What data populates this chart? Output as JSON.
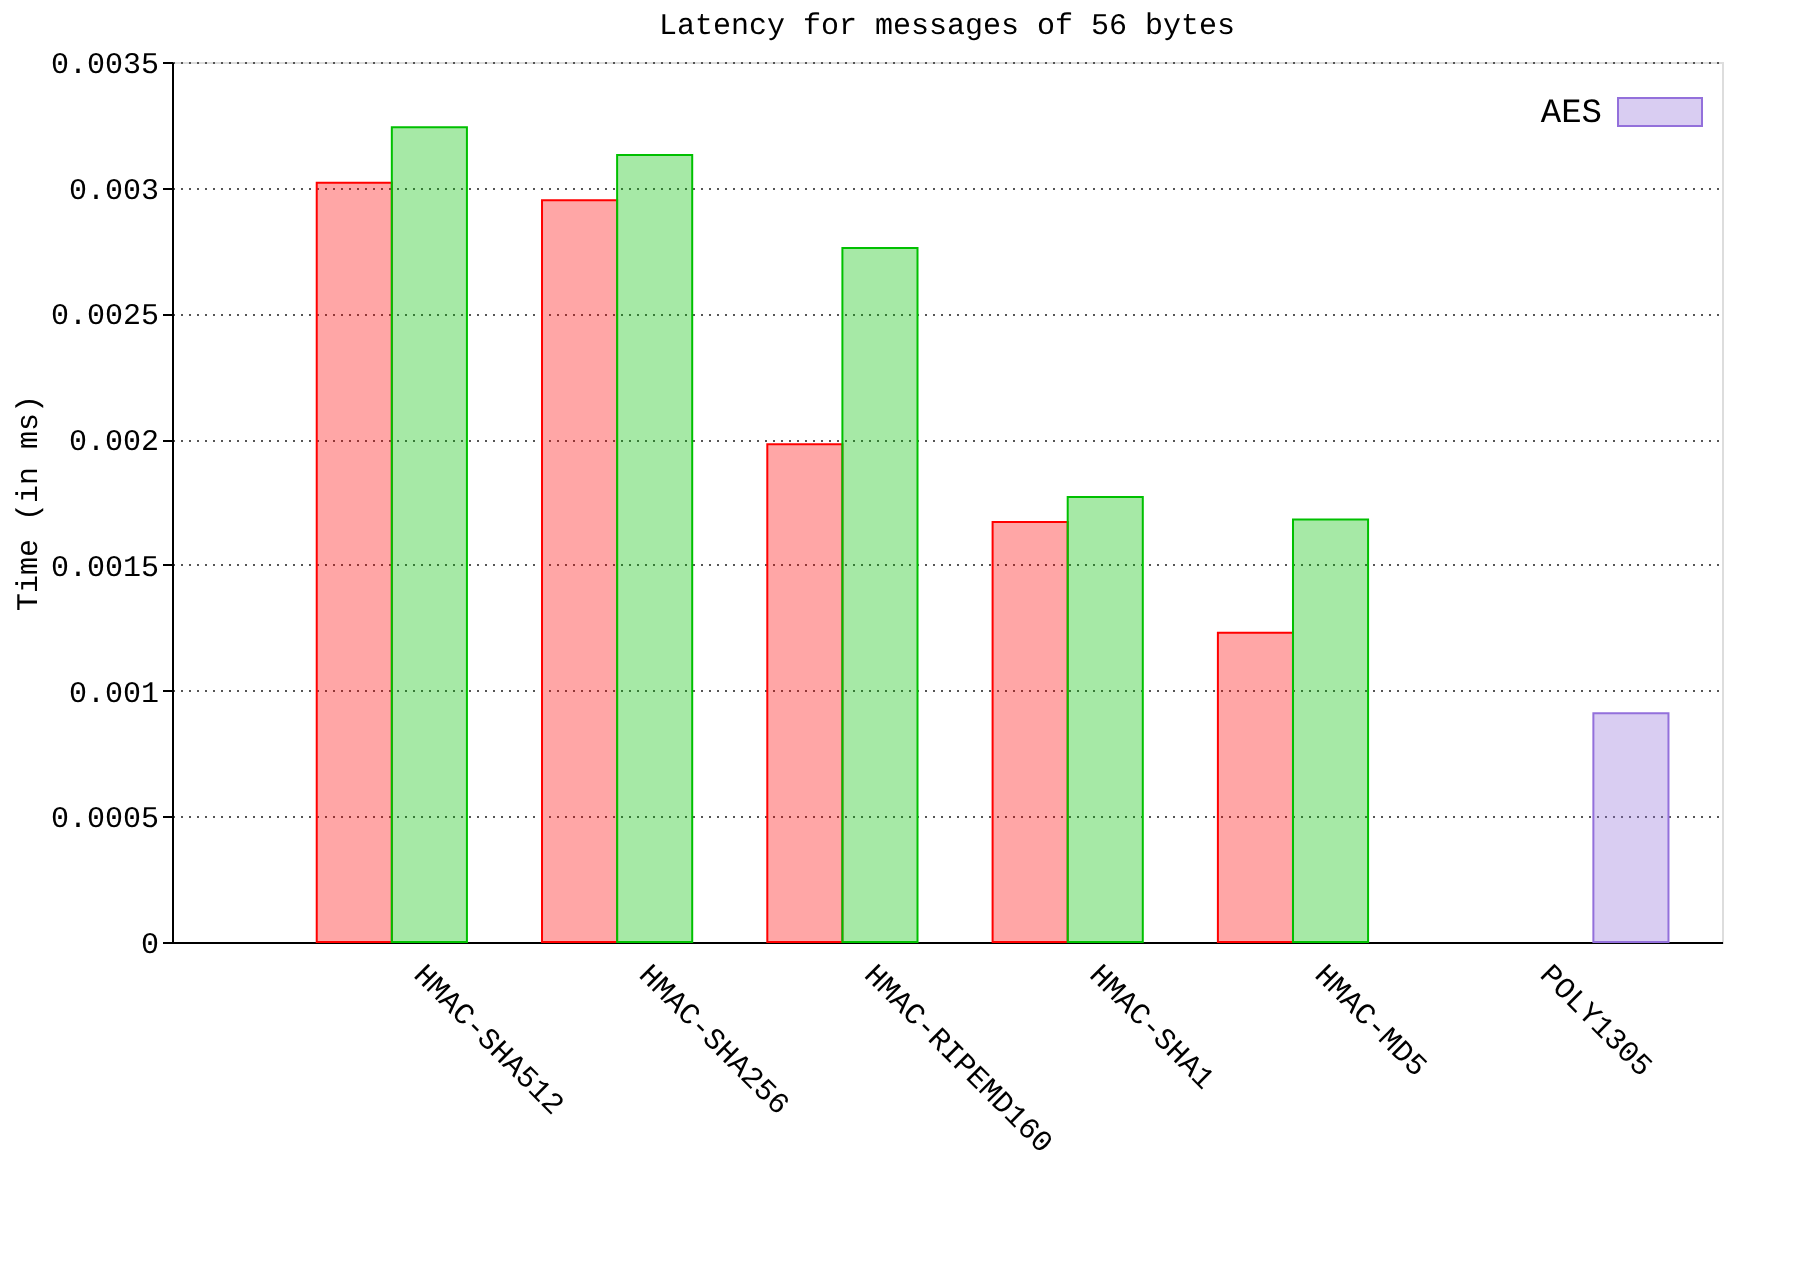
{
  "chart_data": {
    "type": "bar",
    "title": "Latency for messages of 56 bytes",
    "ylabel": "Time (in ms)",
    "categories": [
      "HMAC-SHA512",
      "HMAC-SHA256",
      "HMAC-RIPEMD160",
      "HMAC-SHA1",
      "HMAC-MD5",
      "POLY1305"
    ],
    "series": [
      {
        "color": "#ff0000",
        "values": [
          0.00302,
          0.00295,
          0.00198,
          0.00167,
          0.00123,
          null
        ]
      },
      {
        "color": "#00c000",
        "values": [
          0.00324,
          0.00313,
          0.00276,
          0.00177,
          0.00168,
          null
        ]
      },
      {
        "name": "AES",
        "color": "#9370db",
        "values": [
          null,
          null,
          null,
          null,
          null,
          0.00091
        ]
      }
    ],
    "ylim": [
      0,
      0.0035
    ],
    "yticks": [
      0,
      0.0005,
      0.001,
      0.0015,
      0.002,
      0.0025,
      0.003,
      0.0035
    ],
    "grid": "y",
    "legend": "top right"
  }
}
